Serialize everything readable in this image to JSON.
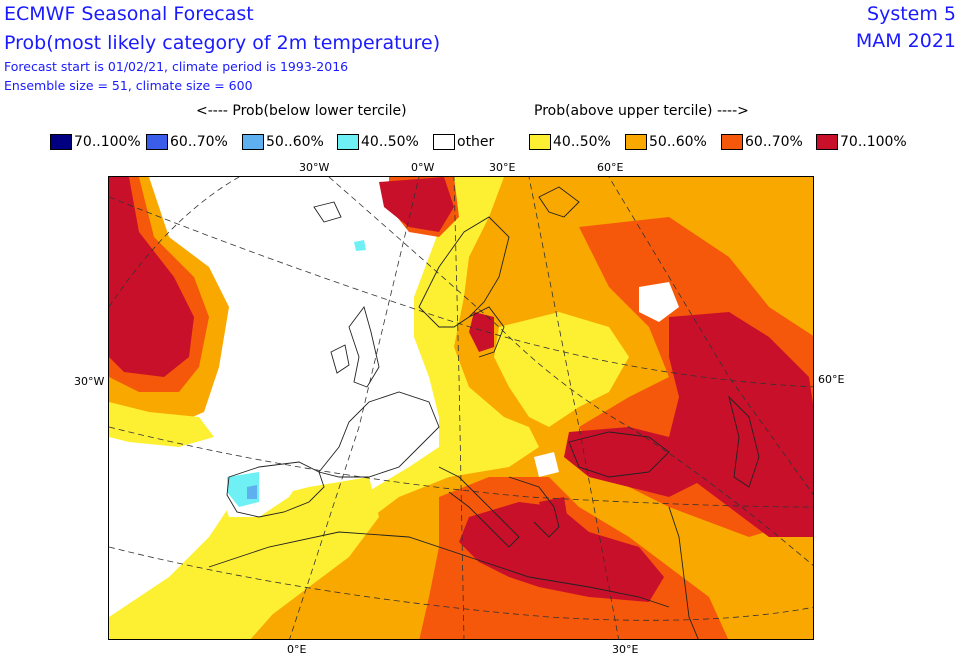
{
  "header": {
    "title": "ECMWF Seasonal Forecast",
    "subtitle": "Prob(most likely category of 2m temperature)",
    "forecast_info": "Forecast start is 01/02/21, climate period is 1993-2016",
    "ensemble_info": "Ensemble size = 51, climate size = 600",
    "system": "System 5",
    "season": "MAM 2021"
  },
  "legend": {
    "below_label": "<---- Prob(below lower tercile)",
    "above_label": "Prob(above upper tercile) ---->",
    "items": [
      {
        "label": "70..100%",
        "color": "#000080"
      },
      {
        "label": "60..70%",
        "color": "#3a5eea"
      },
      {
        "label": "50..60%",
        "color": "#5eb0ee"
      },
      {
        "label": "40..50%",
        "color": "#6ff0f4"
      },
      {
        "label": "other",
        "color": "#ffffff"
      },
      {
        "label": "40..50%",
        "color": "#fdf033"
      },
      {
        "label": "50..60%",
        "color": "#f9a800"
      },
      {
        "label": "60..70%",
        "color": "#f5580a"
      },
      {
        "label": "70..100%",
        "color": "#c8102a"
      }
    ]
  },
  "map": {
    "lon_labels_top": [
      "30°W",
      "0°W",
      "30°E",
      "60°E"
    ],
    "lon_labels_bottom": [
      "0°E",
      "30°E"
    ],
    "lat_labels_left": [
      "30°W"
    ],
    "lat_labels_right": [
      "60°E"
    ],
    "colors": {
      "other": "#ffffff",
      "yellow": "#fdf033",
      "orange": "#f9a800",
      "darkorange": "#f5580a",
      "red": "#c8102a",
      "cyan": "#6ff0f4",
      "lightblue": "#5eb0ee"
    }
  }
}
